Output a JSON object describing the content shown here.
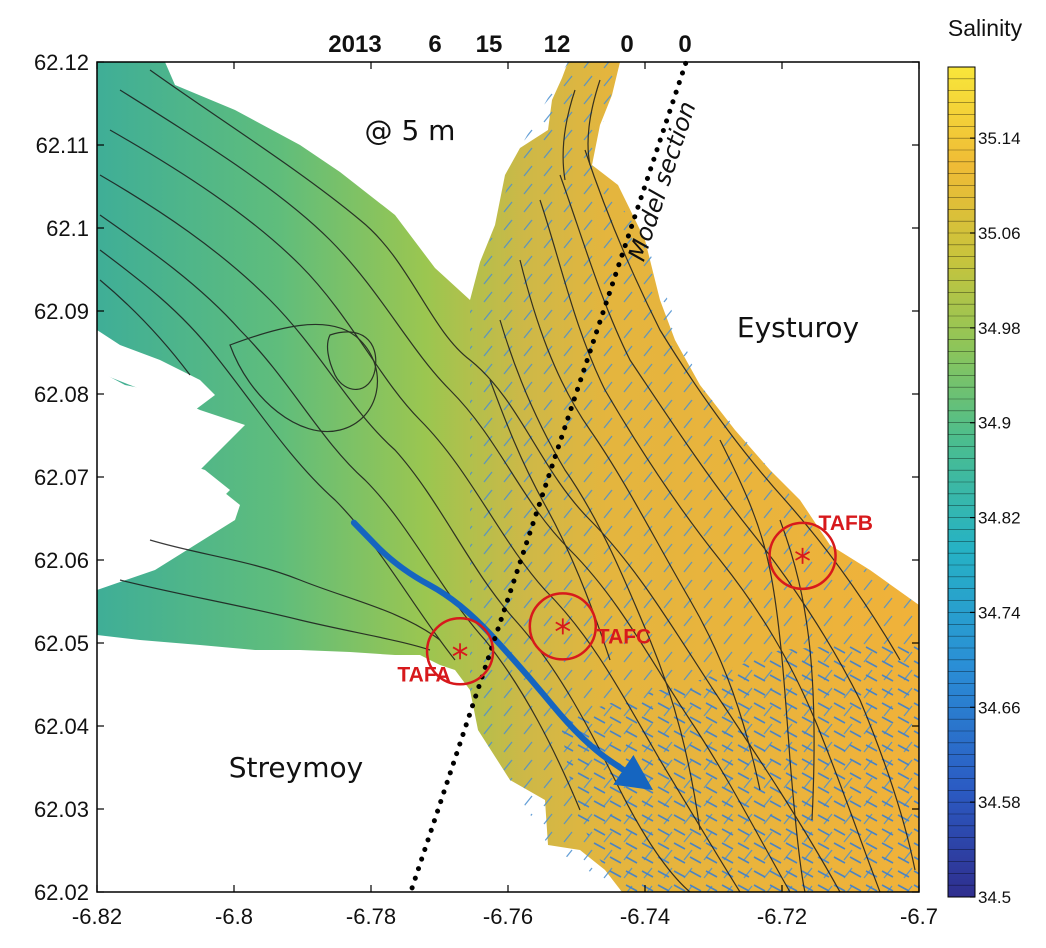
{
  "date_header": [
    "2013",
    "6",
    "15",
    "12",
    "0",
    "0"
  ],
  "depth_label": "@ 5 m",
  "section_label": "Model section",
  "colorbar": {
    "title": "Salinity",
    "min": 34.5,
    "max": 35.2,
    "ticks": [
      "35.14",
      "35.06",
      "34.98",
      "34.9",
      "34.82",
      "34.74",
      "34.66",
      "34.58",
      "34.5"
    ],
    "tick_values": [
      35.14,
      35.06,
      34.98,
      34.9,
      34.82,
      34.74,
      34.66,
      34.58,
      34.5
    ],
    "colors": [
      "#2f2e8e",
      "#2b63c8",
      "#2aa5d6",
      "#38b7a8",
      "#68c27a",
      "#a6c94a",
      "#d8c33c",
      "#f2b838",
      "#f8e238"
    ]
  },
  "axes": {
    "xlim": [
      -6.82,
      -6.7
    ],
    "ylim": [
      62.02,
      62.12
    ],
    "x_ticks": [
      "-6.82",
      "-6.8",
      "-6.78",
      "-6.76",
      "-6.74",
      "-6.72",
      "-6.7"
    ],
    "y_ticks": [
      "62.12",
      "62.11",
      "62.1",
      "62.09",
      "62.08",
      "62.07",
      "62.06",
      "62.05",
      "62.04",
      "62.03",
      "62.02"
    ]
  },
  "land": {
    "east": "Eysturoy",
    "west": "Streymoy"
  },
  "stations": [
    {
      "name": "TAFA",
      "lon": -6.767,
      "lat": 62.049
    },
    {
      "name": "TAFC",
      "lon": -6.752,
      "lat": 62.052
    },
    {
      "name": "TAFB",
      "lon": -6.717,
      "lat": 62.0605
    }
  ],
  "section_line": {
    "start": [
      -6.774,
      62.0205
    ],
    "end": [
      -6.734,
      62.12
    ]
  },
  "flow_arrow": [
    [
      -6.7825,
      62.0645
    ],
    [
      -6.776,
      62.059
    ],
    [
      -6.767,
      62.055
    ],
    [
      -6.758,
      62.047
    ],
    [
      -6.749,
      62.038
    ],
    [
      -6.741,
      62.0335
    ]
  ],
  "colors": {
    "station": "#d7191c",
    "flow_arrow": "#1565c0",
    "frame": "#000000"
  }
}
